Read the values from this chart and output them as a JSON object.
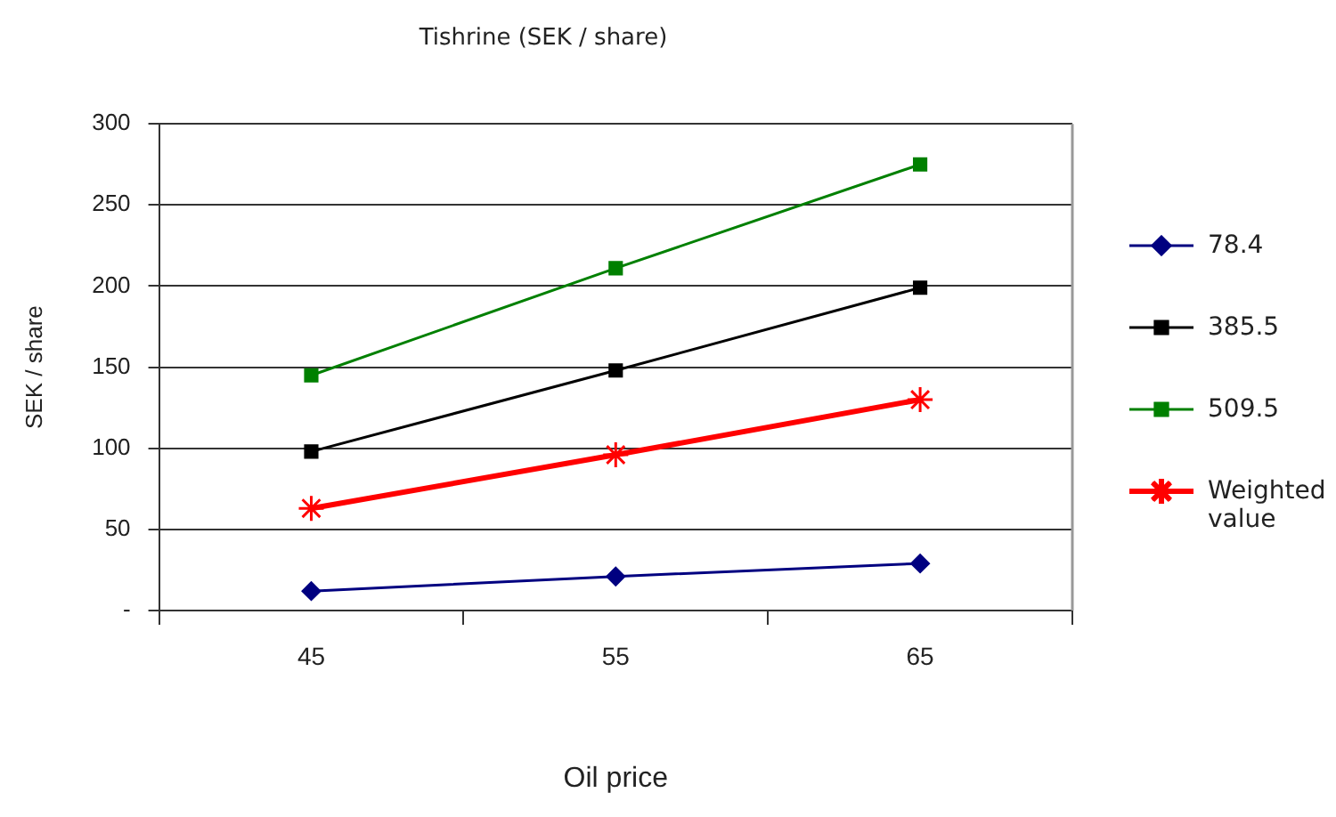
{
  "chart_data": {
    "type": "line",
    "title": "Tishrine (SEK / share)",
    "xlabel": "Oil price",
    "ylabel": "SEK / share",
    "categories": [
      "45",
      "55",
      "65"
    ],
    "series": [
      {
        "name": "78.4",
        "color": "#000080",
        "marker": "diamond",
        "values": [
          12,
          21,
          29
        ]
      },
      {
        "name": "385.5",
        "color": "#000000",
        "marker": "square",
        "values": [
          98,
          148,
          199
        ]
      },
      {
        "name": "509.5",
        "color": "#008000",
        "marker": "square",
        "values": [
          145,
          211,
          275
        ]
      },
      {
        "name": "Weighted value",
        "color": "#ff0000",
        "marker": "cross",
        "values": [
          63,
          96,
          130
        ]
      }
    ],
    "ylim": [
      0,
      300
    ],
    "yticks": [
      {
        "value": 0,
        "label": "-"
      },
      50,
      100,
      150,
      200,
      250,
      300
    ],
    "grid": "y",
    "legend": "right"
  }
}
